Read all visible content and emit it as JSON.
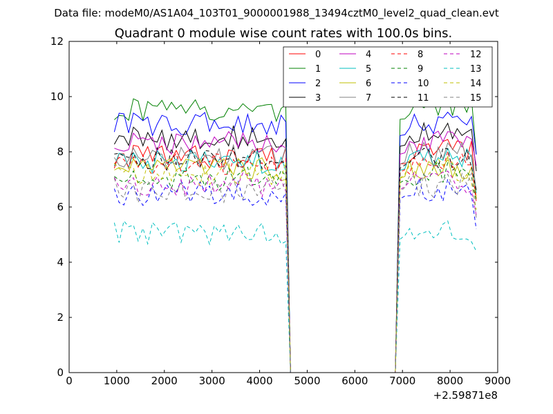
{
  "chart_data": {
    "type": "line",
    "suptitle": "Data file: modeM0/AS1A04_103T01_9000001988_13494cztM0_level2_quad_clean.evt",
    "title": "Quadrant 0 module wise count rates with 100.0s bins.",
    "xlabel": "",
    "ylabel": "",
    "x_offset_label": "+2.59871e8",
    "xlim": [
      0,
      9000
    ],
    "ylim": [
      0,
      12
    ],
    "xticks": [
      0,
      1000,
      2000,
      3000,
      4000,
      5000,
      6000,
      7000,
      8000,
      9000
    ],
    "xtick_labels": [
      "0",
      "1000",
      "2000",
      "3000",
      "4000",
      "5000",
      "6000",
      "7000",
      "8000",
      "9000"
    ],
    "yticks": [
      0,
      2,
      4,
      6,
      8,
      10,
      12
    ],
    "ytick_labels": [
      "0",
      "2",
      "4",
      "6",
      "8",
      "10",
      "12"
    ],
    "legend_position": "top-right",
    "legend_columns": 4,
    "segments": [
      {
        "x_start": 950,
        "x_end": 4550,
        "step": 100,
        "points": 37
      },
      {
        "x_start": 4650,
        "x_end": 6850,
        "value": 0
      },
      {
        "x_start": 6950,
        "x_end": 8550,
        "step": 100,
        "points": 17
      }
    ],
    "series": [
      {
        "name": "0",
        "color": "#ff0000",
        "dash": "solid",
        "mean1": 7.8,
        "mean2": 8.0,
        "x_end": 8550,
        "v_end": 6.3
      },
      {
        "name": "1",
        "color": "#008000",
        "dash": "solid",
        "mean1": 9.5,
        "mean2": 9.6,
        "x_end": 8550,
        "v_end": 7.9
      },
      {
        "name": "2",
        "color": "#0000ff",
        "dash": "solid",
        "mean1": 9.0,
        "mean2": 9.0,
        "x_end": 8550,
        "v_end": 7.9
      },
      {
        "name": "3",
        "color": "#000000",
        "dash": "solid",
        "mean1": 8.5,
        "mean2": 8.6,
        "x_end": 8550,
        "v_end": 7.3
      },
      {
        "name": "4",
        "color": "#bf00bf",
        "dash": "solid",
        "mean1": 8.3,
        "mean2": 8.3,
        "x_end": 8550,
        "v_end": 7.5
      },
      {
        "name": "5",
        "color": "#00bfbf",
        "dash": "solid",
        "mean1": 7.6,
        "mean2": 7.7,
        "x_end": 8550,
        "v_end": 6.5
      },
      {
        "name": "6",
        "color": "#bfbf00",
        "dash": "solid",
        "mean1": 7.4,
        "mean2": 7.4,
        "x_end": 8550,
        "v_end": 6.3
      },
      {
        "name": "7",
        "color": "#808080",
        "dash": "solid",
        "mean1": 7.8,
        "mean2": 7.9,
        "x_end": 8550,
        "v_end": 6.6
      },
      {
        "name": "8",
        "color": "#ff0000",
        "dash": "dashed",
        "mean1": 7.5,
        "mean2": 7.6,
        "x_end": 8550,
        "v_end": 6.2
      },
      {
        "name": "9",
        "color": "#008000",
        "dash": "dashed",
        "mean1": 7.0,
        "mean2": 7.2,
        "x_end": 8550,
        "v_end": 6.2
      },
      {
        "name": "10",
        "color": "#0000ff",
        "dash": "dashed",
        "mean1": 6.5,
        "mean2": 6.6,
        "x_end": 8550,
        "v_end": 5.2
      },
      {
        "name": "11",
        "color": "#000000",
        "dash": "dashed",
        "mean1": 7.7,
        "mean2": 7.7,
        "x_end": 8550,
        "v_end": 6.6
      },
      {
        "name": "12",
        "color": "#bf00bf",
        "dash": "dashed",
        "mean1": 6.8,
        "mean2": 6.9,
        "x_end": 8550,
        "v_end": 5.7
      },
      {
        "name": "13",
        "color": "#00bfbf",
        "dash": "dashed",
        "mean1": 5.1,
        "mean2": 5.1,
        "x_end": 8550,
        "v_end": 4.4
      },
      {
        "name": "14",
        "color": "#bfbf00",
        "dash": "dashed",
        "mean1": 7.2,
        "mean2": 7.3,
        "x_end": 8550,
        "v_end": 5.9
      },
      {
        "name": "15",
        "color": "#808080",
        "dash": "dashed",
        "mean1": 6.6,
        "mean2": 6.8,
        "x_end": 8550,
        "v_end": 5.6
      }
    ]
  }
}
